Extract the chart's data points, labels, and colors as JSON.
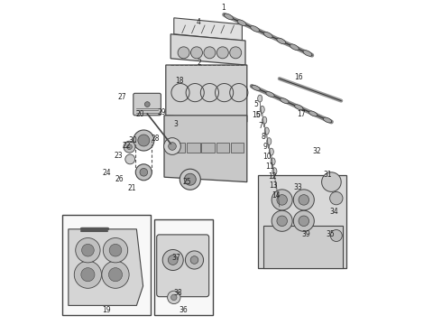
{
  "background_color": "#ffffff",
  "label_color": "#222222",
  "label_fontsize": 5.5,
  "edge_color": "#444444",
  "line_color": "#555555"
}
